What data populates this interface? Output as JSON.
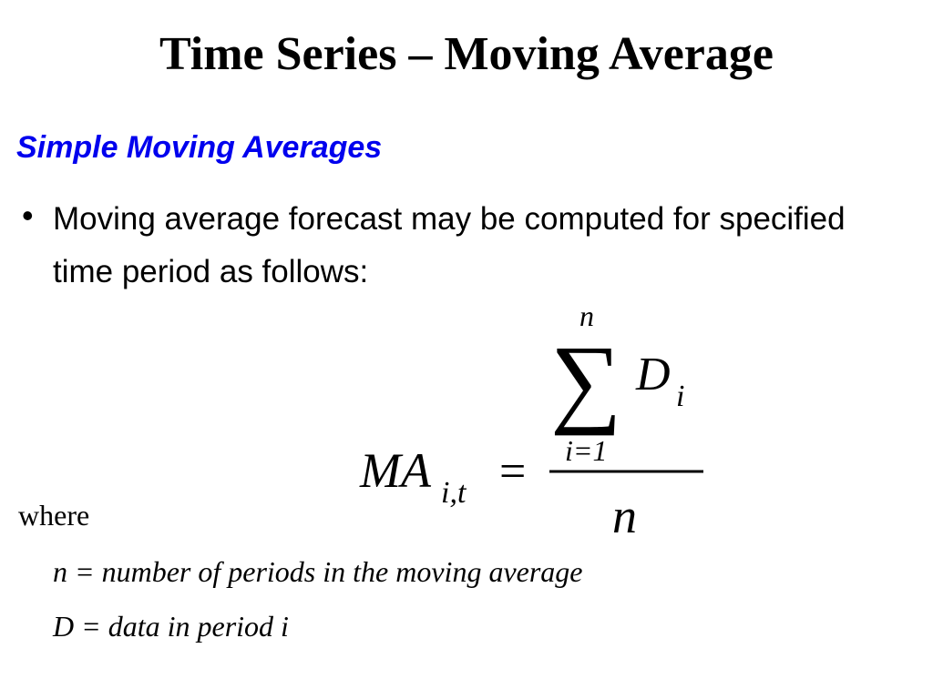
{
  "header": {
    "title": "Time Series – Moving Average"
  },
  "section": {
    "heading": "Simple Moving Averages"
  },
  "bullets": [
    "Moving average forecast may be computed for specified time period as follows:"
  ],
  "formula": {
    "lhs": "MA",
    "lhs_sub": "i,t",
    "equals": "=",
    "sum_upper": "n",
    "sum_symbol": "∑",
    "sum_term": "D",
    "sum_term_sub": "i",
    "sum_lower": "i=1",
    "denominator": "n"
  },
  "where": "where",
  "definitions": [
    "n = number of periods in the moving average",
    "D = data in period i"
  ]
}
